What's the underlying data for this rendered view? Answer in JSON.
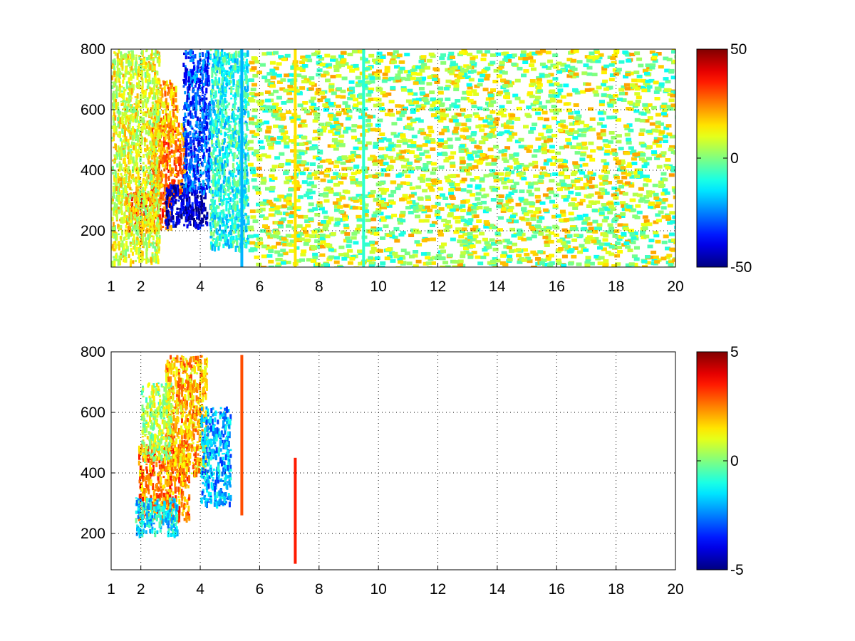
{
  "chart_data": [
    {
      "type": "heatmap",
      "title": "",
      "xlabel": "",
      "ylabel": "",
      "xlim": [
        1,
        20
      ],
      "ylim": [
        80,
        800
      ],
      "xticks": [
        "1",
        "2",
        "4",
        "6",
        "8",
        "10",
        "12",
        "14",
        "16",
        "18",
        "20"
      ],
      "yticks": [
        "200",
        "400",
        "600",
        "800"
      ],
      "colorbar": {
        "min": -50,
        "max": 50,
        "ticks": [
          "-50",
          "0",
          "50"
        ],
        "colormap": "jet"
      },
      "grid": true,
      "features": [
        {
          "x": [
            1.5,
            3.0
          ],
          "y": [
            210,
            330
          ],
          "value": 30
        },
        {
          "x": [
            2.3,
            3.5
          ],
          "y": [
            320,
            560
          ],
          "value": 25
        },
        {
          "x": [
            2.5,
            3.2
          ],
          "y": [
            520,
            700
          ],
          "value": 20
        },
        {
          "x": [
            2.8,
            4.2
          ],
          "y": [
            220,
            360
          ],
          "value": -45
        },
        {
          "x": [
            3.4,
            4.3
          ],
          "y": [
            330,
            800
          ],
          "value": -30
        },
        {
          "x": [
            1.0,
            2.6
          ],
          "y": [
            100,
            800
          ],
          "value": 10
        },
        {
          "x": [
            4.3,
            5.6
          ],
          "y": [
            150,
            800
          ],
          "value": -10
        },
        {
          "x": [
            5.6,
            20.0
          ],
          "y": [
            80,
            800
          ],
          "value": 5
        }
      ],
      "vertical_lines": [
        {
          "x": 5.4,
          "value": -20
        },
        {
          "x": 7.2,
          "value": 15
        },
        {
          "x": 9.5,
          "value": -8
        }
      ]
    },
    {
      "type": "heatmap",
      "title": "",
      "xlabel": "",
      "ylabel": "",
      "xlim": [
        1,
        20
      ],
      "ylim": [
        80,
        800
      ],
      "xticks": [
        "1",
        "2",
        "4",
        "6",
        "8",
        "10",
        "12",
        "14",
        "16",
        "18",
        "20"
      ],
      "yticks": [
        "200",
        "400",
        "600",
        "800"
      ],
      "colorbar": {
        "min": -5,
        "max": 5,
        "ticks": [
          "-5",
          "0",
          "5"
        ],
        "colormap": "jet"
      },
      "grid": true,
      "features": [
        {
          "x": [
            1.9,
            3.6
          ],
          "y": [
            250,
            500
          ],
          "value": 2.5
        },
        {
          "x": [
            2.8,
            4.2
          ],
          "y": [
            400,
            790
          ],
          "value": 2
        },
        {
          "x": [
            1.8,
            3.2
          ],
          "y": [
            200,
            320
          ],
          "value": -1.5
        },
        {
          "x": [
            2.0,
            3.0
          ],
          "y": [
            450,
            700
          ],
          "value": 0.5
        },
        {
          "x": [
            4.0,
            5.0
          ],
          "y": [
            300,
            620
          ],
          "value": -2
        }
      ],
      "vertical_lines": [
        {
          "x": 5.4,
          "y": [
            260,
            790
          ],
          "value": 3
        },
        {
          "x": 7.2,
          "y": [
            100,
            450
          ],
          "value": 3.5
        }
      ]
    }
  ]
}
